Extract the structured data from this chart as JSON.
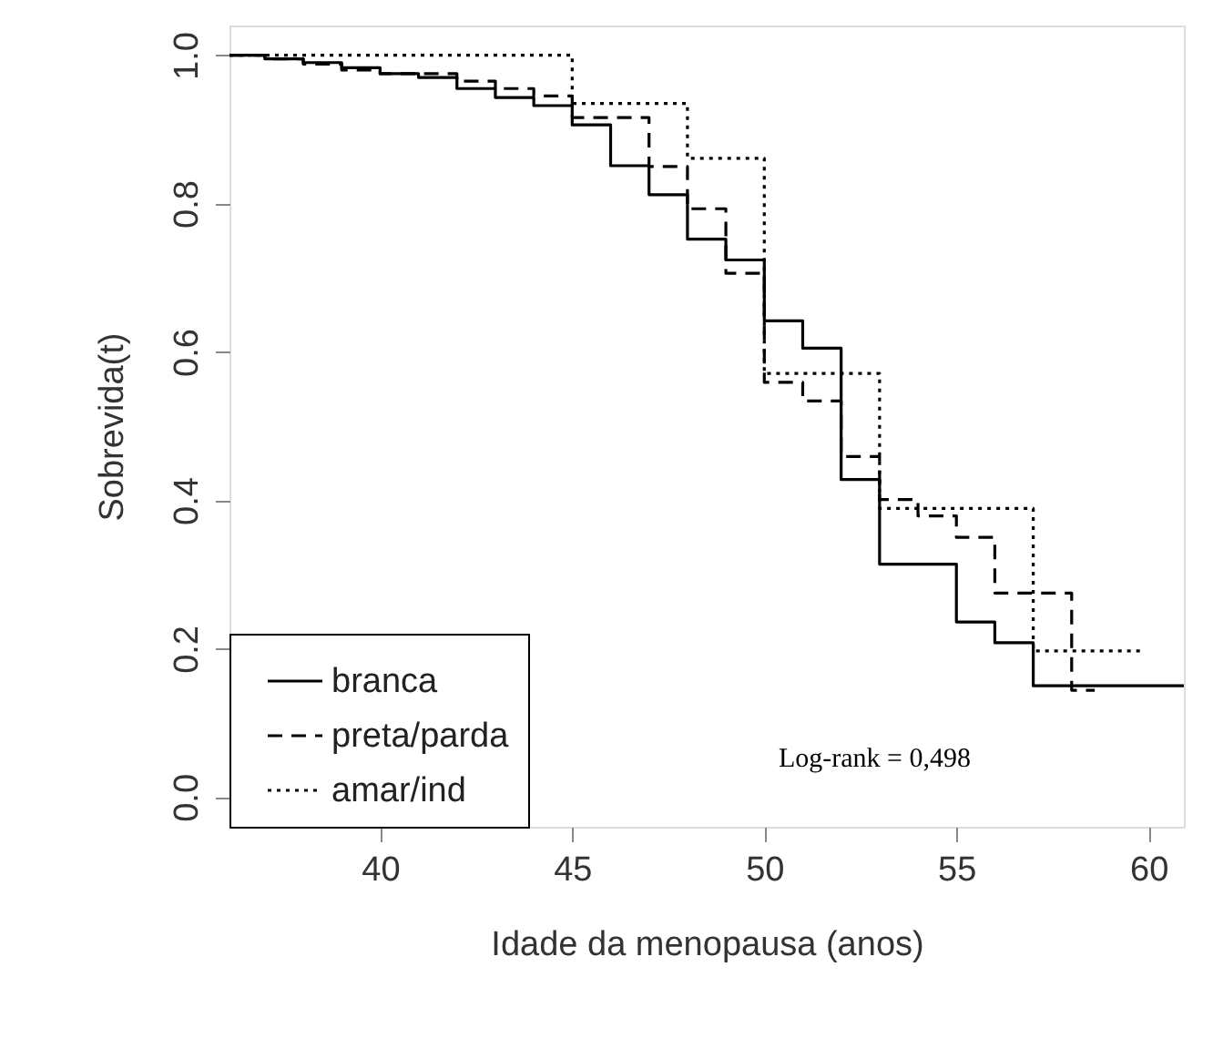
{
  "chart_data": {
    "type": "step",
    "xlabel": "Idade da menopausa (anos)",
    "ylabel": "Sobrevida(t)",
    "xlim": [
      36.08,
      60.92
    ],
    "xticks": [
      40,
      45,
      50,
      55,
      60
    ],
    "ylim": [
      -0.04,
      1.04
    ],
    "yticks": [
      {
        "value": 0,
        "label": "0.0"
      },
      {
        "value": 0.2,
        "label": "0.2"
      },
      {
        "value": 0.4,
        "label": "0.4"
      },
      {
        "value": 0.6,
        "label": "0.6"
      },
      {
        "value": 0.8,
        "label": "0.8"
      },
      {
        "value": 1,
        "label": "1.0"
      }
    ],
    "grid": false,
    "legend": "bottom left",
    "annotations": [
      "Log-rank = 0,498"
    ],
    "series": [
      {
        "name": "branca",
        "color": "#000000",
        "line_style": "solid",
        "x": [
          36.08,
          37,
          38,
          39,
          40,
          41,
          42,
          43,
          44,
          45,
          46,
          47,
          48,
          49,
          50,
          51,
          52,
          53,
          55,
          56,
          57,
          60.92
        ],
        "values": [
          1.0,
          0.995,
          0.99,
          0.983,
          0.975,
          0.97,
          0.955,
          0.943,
          0.932,
          0.906,
          0.851,
          0.812,
          0.752,
          0.724,
          0.642,
          0.605,
          0.428,
          0.314,
          0.236,
          0.208,
          0.15,
          0.15
        ]
      },
      {
        "name": "preta/parda",
        "color": "#000000",
        "line_style": "dashed",
        "x": [
          36.08,
          37,
          38,
          39,
          40,
          42,
          43,
          44,
          45,
          47,
          48,
          49,
          50,
          51,
          52,
          53,
          54,
          55,
          56,
          58,
          58.6
        ],
        "values": [
          1.0,
          0.995,
          0.988,
          0.98,
          0.975,
          0.965,
          0.955,
          0.945,
          0.916,
          0.85,
          0.793,
          0.706,
          0.559,
          0.534,
          0.459,
          0.401,
          0.379,
          0.35,
          0.275,
          0.144,
          0.144
        ]
      },
      {
        "name": "amar/ind",
        "color": "#000000",
        "line_style": "dotted",
        "x": [
          36.08,
          45,
          48,
          50,
          53,
          57,
          59.8
        ],
        "values": [
          1.0,
          0.935,
          0.861,
          0.571,
          0.389,
          0.197,
          0.197
        ]
      }
    ]
  }
}
